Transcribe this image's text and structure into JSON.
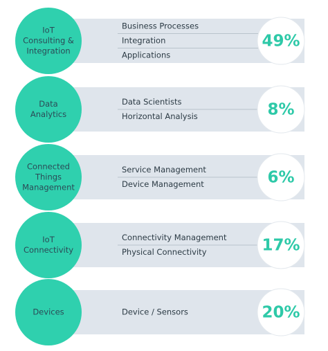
{
  "items": [
    {
      "label_lines": [
        "IoT",
        "Consulting &",
        "Integration"
      ],
      "subitems": [
        "Business Processes",
        "Integration",
        "Applications"
      ],
      "percent": "49%"
    },
    {
      "label_lines": [
        "Data",
        "Analytics"
      ],
      "subitems": [
        "Data Scientists",
        "Horizontal  Analysis"
      ],
      "percent": "8%"
    },
    {
      "label_lines": [
        "Connected",
        "Things",
        "Management"
      ],
      "subitems": [
        "Service Management",
        "Device Management"
      ],
      "percent": "6%"
    },
    {
      "label_lines": [
        "IoT",
        "Connectivity"
      ],
      "subitems": [
        "Connectivity Management",
        "Physical Connectivity"
      ],
      "percent": "17%"
    },
    {
      "label_lines": [
        "Devices"
      ],
      "subitems": [
        "Device / Sensors"
      ],
      "percent": "20%"
    }
  ]
}
